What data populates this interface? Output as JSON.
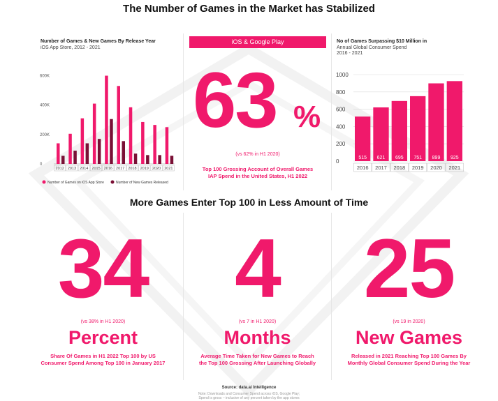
{
  "header": {
    "title": "The Number of Games in the Market has Stabilized",
    "subtitle2": "More Games Enter Top 100 in Less Amount of Time"
  },
  "left_chart": {
    "title": "Number of Games & New Games By Release Year",
    "subtitle": "iOS App Store, 2012 - 2021"
  },
  "middle": {
    "banner": "iOS & Google Play",
    "big_number": "63",
    "unit": "%",
    "vs": "(vs 62% in H1 2020)",
    "desc_line1": "Top 100 Grossing Account of Overall Games",
    "desc_line2": "IAP Spend in the United States, H1 2022"
  },
  "right_chart": {
    "title": "No of Games Surpassing $10 Million in",
    "subtitle_line1": "Annual Global Consumer Spend",
    "subtitle_line2": "2016 - 2021"
  },
  "stats": [
    {
      "number": "34",
      "vs": "(vs 38% in H1 2020)",
      "word": "Percent",
      "desc1": "Share Of Games in H1 2022 Top 100 by US",
      "desc2": "Consumer Spend Among Top 100 in January 2017"
    },
    {
      "number": "4",
      "vs": "(vs 7 in H1 2020)",
      "word": "Months",
      "desc1": "Average Time Taken for New Games to Reach",
      "desc2": "the Top 100 Grossing After Launching Globally"
    },
    {
      "number": "25",
      "vs": "(vs 19 in 2020)",
      "word": "New Games",
      "desc1": "Released in 2021 Reaching Top 100 Games By",
      "desc2": "Monthly Global Consumer Spend During the Year"
    }
  ],
  "footer": {
    "source": "Source: data.ai Intelligence",
    "note1": "Note: Downloads and Consumer Spend across iOS, Google Play;",
    "note2": "Spend is gross – inclusive of any percent taken by the app stores"
  },
  "chart_data": [
    {
      "type": "bar",
      "title": "Number of Games & New Games By Release Year",
      "subtitle": "iOS App Store, 2012 - 2021",
      "categories": [
        "2012",
        "2013",
        "2014",
        "2015",
        "2016",
        "2017",
        "2018",
        "2019",
        "2020",
        "2021"
      ],
      "series": [
        {
          "name": "Number of Games on iOS App Store",
          "color": "#f0196b",
          "values": [
            140000,
            205000,
            310000,
            410000,
            600000,
            530000,
            385000,
            285000,
            265000,
            250000
          ]
        },
        {
          "name": "Number of New Games Released",
          "color": "#7a0f35",
          "values": [
            55000,
            90000,
            140000,
            170000,
            305000,
            155000,
            70000,
            60000,
            60000,
            55000
          ]
        }
      ],
      "yticks": [
        "0",
        "200K",
        "400K",
        "600K"
      ],
      "ylim": [
        0,
        650000
      ],
      "legend": "bottom",
      "grid": false
    },
    {
      "type": "bar",
      "title": "No of Games Surpassing $10 Million in",
      "subtitle": "Annual Global Consumer Spend 2016 - 2021",
      "categories": [
        "2016",
        "2017",
        "2018",
        "2019",
        "2020",
        "2021"
      ],
      "values": [
        515,
        621,
        695,
        751,
        899,
        925
      ],
      "yticks": [
        "0",
        "200",
        "400",
        "600",
        "800",
        "1000"
      ],
      "ylim": [
        0,
        1000
      ],
      "grid": true,
      "color": "#f0196b"
    }
  ]
}
